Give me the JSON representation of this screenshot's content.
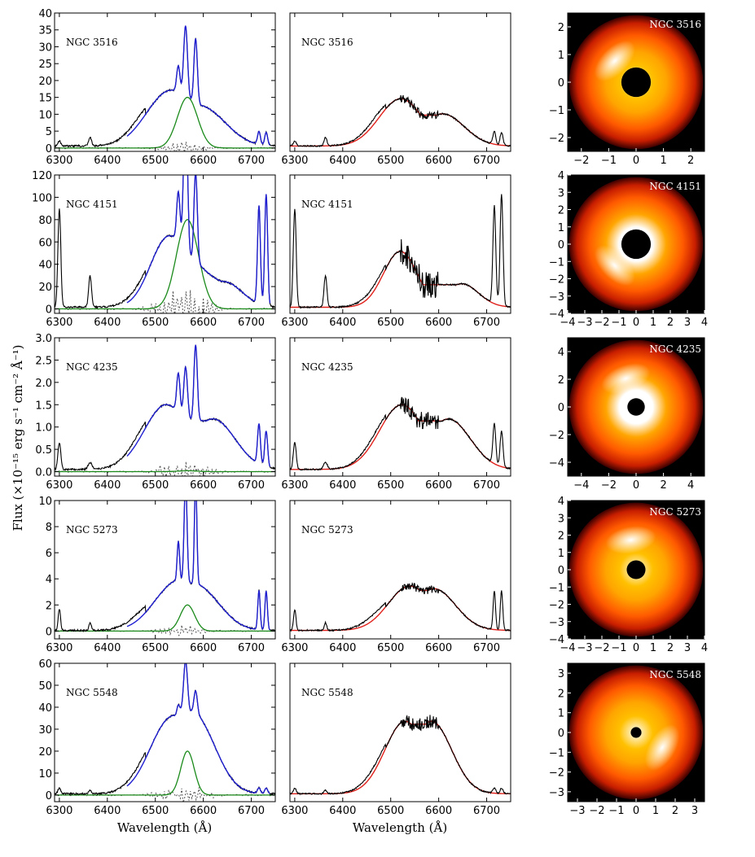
{
  "chart_data": {
    "type": "line",
    "x_label": "Wavelength (Å)",
    "y_label": "Flux (×10⁻¹⁵ erg s⁻¹ cm⁻² Å⁻¹)",
    "x_range": [
      6290,
      6750
    ],
    "x_ticks": [
      6300,
      6400,
      6500,
      6600,
      6700
    ],
    "colors": {
      "observed": "#000000",
      "fit": "#1f1fd1",
      "narrow": "#1a8a1a",
      "residual": "#555555",
      "disk_model": "#e0201a"
    },
    "objects": [
      {
        "name": "NGC 3516",
        "ylim": [
          -1,
          40
        ],
        "yticks": [
          0,
          5,
          10,
          15,
          20,
          25,
          30,
          35,
          40
        ],
        "ylim2": [
          -1,
          40
        ],
        "rlim": 2.5,
        "rticks": [
          -2,
          -1,
          0,
          1,
          2
        ],
        "continuum": 0.6,
        "narrow_amp": 15,
        "narrow_sigma": 21,
        "disk_amp": 14,
        "disk_blue": 6521,
        "disk_red": 6608,
        "disk_width": 45,
        "red_ratio": 0.68,
        "lines": [
          {
            "c": 6300,
            "a": 1.5,
            "w": 3
          },
          {
            "c": 6364,
            "a": 2.5,
            "w": 3
          },
          {
            "c": 6548,
            "a": 8,
            "w": 3.5
          },
          {
            "c": 6563,
            "a": 22,
            "w": 4
          },
          {
            "c": 6584,
            "a": 19,
            "w": 3.5
          },
          {
            "c": 6716,
            "a": 3.8,
            "w": 3
          },
          {
            "c": 6731,
            "a": 3.8,
            "w": 3
          }
        ],
        "residual_amp": 2,
        "disk_brightness": 0.9,
        "hotspot_angle": 135,
        "inner_r": 0.22
      },
      {
        "name": "NGC 4151",
        "ylim": [
          -4,
          120
        ],
        "yticks": [
          0,
          20,
          40,
          60,
          80,
          100,
          120
        ],
        "ylim2": [
          -4,
          120
        ],
        "rlim": 4,
        "rticks": [
          -4,
          -3,
          -2,
          -1,
          0,
          1,
          2,
          3,
          4
        ],
        "continuum": 1.5,
        "narrow_amp": 80,
        "narrow_sigma": 23,
        "disk_amp": 50,
        "disk_blue": 6520,
        "disk_red": 6648,
        "disk_width": 35,
        "red_ratio": 0.42,
        "lines": [
          {
            "c": 6300,
            "a": 88,
            "w": 3
          },
          {
            "c": 6364,
            "a": 28,
            "w": 3
          },
          {
            "c": 6548,
            "a": 45,
            "w": 3.5
          },
          {
            "c": 6563,
            "a": 140,
            "w": 4
          },
          {
            "c": 6584,
            "a": 80,
            "w": 3.5
          },
          {
            "c": 6716,
            "a": 88,
            "w": 3
          },
          {
            "c": 6731,
            "a": 100,
            "w": 3
          }
        ],
        "residual_amp": 20,
        "disk_brightness": 0.8,
        "hotspot_angle": 225,
        "inner_r": 0.22
      },
      {
        "name": "NGC 4235",
        "ylim": [
          -0.1,
          3.0
        ],
        "yticks": [
          0.0,
          0.5,
          1.0,
          1.5,
          2.0,
          2.5,
          3.0
        ],
        "ylim2": [
          -0.1,
          3.0
        ],
        "rlim": 5,
        "rticks": [
          -4,
          -2,
          0,
          2,
          4
        ],
        "continuum": 0.05,
        "narrow_amp": 0.02,
        "narrow_sigma": 20,
        "disk_amp": 1.45,
        "disk_blue": 6523,
        "disk_red": 6620,
        "disk_width": 46,
        "red_ratio": 0.78,
        "lines": [
          {
            "c": 6300,
            "a": 0.6,
            "w": 3
          },
          {
            "c": 6364,
            "a": 0.15,
            "w": 4
          },
          {
            "c": 6548,
            "a": 0.9,
            "w": 3.5
          },
          {
            "c": 6563,
            "a": 1.2,
            "w": 4
          },
          {
            "c": 6584,
            "a": 1.7,
            "w": 3.5
          },
          {
            "c": 6716,
            "a": 0.9,
            "w": 3
          },
          {
            "c": 6731,
            "a": 0.8,
            "w": 3
          }
        ],
        "residual_amp": 0.35,
        "disk_brightness": 0.55,
        "hotspot_angle": 110,
        "inner_r": 0.13
      },
      {
        "name": "NGC 5273",
        "ylim": [
          -0.6,
          10
        ],
        "yticks": [
          0,
          2,
          4,
          6,
          8,
          10
        ],
        "ylim2": [
          -0.6,
          10
        ],
        "rlim": 4,
        "rticks": [
          -4,
          -3,
          -2,
          -1,
          0,
          1,
          2,
          3,
          4
        ],
        "continuum": 0.05,
        "narrow_amp": 2,
        "narrow_sigma": 15,
        "disk_amp": 3.4,
        "disk_blue": 6540,
        "disk_red": 6590,
        "disk_width": 45,
        "red_ratio": 0.94,
        "lines": [
          {
            "c": 6300,
            "a": 1.6,
            "w": 2.5
          },
          {
            "c": 6364,
            "a": 0.6,
            "w": 2.5
          },
          {
            "c": 6548,
            "a": 3.0,
            "w": 2.5
          },
          {
            "c": 6563,
            "a": 8.0,
            "w": 3
          },
          {
            "c": 6584,
            "a": 8.0,
            "w": 2.5
          },
          {
            "c": 6716,
            "a": 3.0,
            "w": 2.5
          },
          {
            "c": 6731,
            "a": 3.0,
            "w": 2.5
          }
        ],
        "residual_amp": 0.5,
        "disk_brightness": 1.0,
        "hotspot_angle": 100,
        "inner_r": 0.14
      },
      {
        "name": "NGC 5548",
        "ylim": [
          -3,
          60
        ],
        "yticks": [
          0,
          10,
          20,
          30,
          40,
          50,
          60
        ],
        "ylim2": [
          -3,
          60
        ],
        "rlim": 3.5,
        "rticks": [
          -3,
          -2,
          -1,
          0,
          1,
          2,
          3
        ],
        "continuum": 0.6,
        "narrow_amp": 20,
        "narrow_sigma": 14,
        "disk_amp": 33,
        "disk_blue": 6530,
        "disk_red": 6585,
        "disk_width": 42,
        "red_ratio": 1.0,
        "lines": [
          {
            "c": 6300,
            "a": 2.5,
            "w": 3
          },
          {
            "c": 6364,
            "a": 1.5,
            "w": 3
          },
          {
            "c": 6548,
            "a": 4,
            "w": 3
          },
          {
            "c": 6563,
            "a": 23,
            "w": 4
          },
          {
            "c": 6584,
            "a": 10,
            "w": 3.5
          },
          {
            "c": 6716,
            "a": 2.5,
            "w": 3
          },
          {
            "c": 6731,
            "a": 2.5,
            "w": 3
          }
        ],
        "residual_amp": 5,
        "disk_brightness": 1.0,
        "hotspot_angle": 330,
        "inner_r": 0.08
      }
    ]
  }
}
